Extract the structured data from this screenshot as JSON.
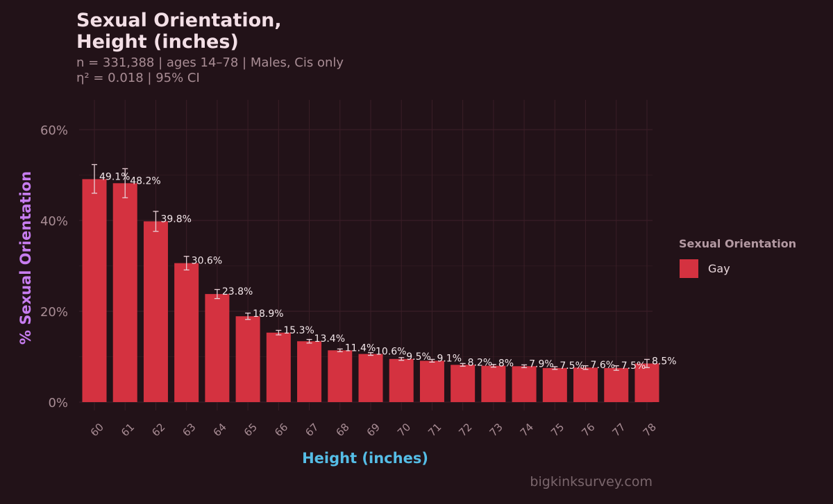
{
  "colors": {
    "background": "#221218",
    "bar": "#d43240",
    "grid": "#3a1e27",
    "tick_text": "#a98d95",
    "ylabel": "#c77df0",
    "xlabel": "#55bde6",
    "label_text": "#f3e7ea",
    "errorbar": "#e8cfd5"
  },
  "title": "Sexual Orientation,\nHeight (inches)",
  "subtitle": "n = 331,388  |  ages 14–78  |  Males, Cis only\nη² = 0.018  |  95% CI",
  "watermark": "bigkinksurvey.com",
  "legend": {
    "title": "Sexual Orientation",
    "items": [
      {
        "label": "Gay",
        "color": "#d43240"
      }
    ]
  },
  "chart_data": {
    "type": "bar",
    "categories": [
      "60",
      "61",
      "62",
      "63",
      "64",
      "65",
      "66",
      "67",
      "68",
      "69",
      "70",
      "71",
      "72",
      "73",
      "74",
      "75",
      "76",
      "77",
      "78"
    ],
    "series": [
      {
        "name": "Gay",
        "values": [
          49.1,
          48.2,
          39.8,
          30.6,
          23.8,
          18.9,
          15.3,
          13.4,
          11.4,
          10.6,
          9.5,
          9.1,
          8.2,
          8.0,
          7.9,
          7.5,
          7.6,
          7.5,
          8.5
        ],
        "labels": [
          "49.1%",
          "48.2%",
          "39.8%",
          "30.6%",
          "23.8%",
          "18.9%",
          "15.3%",
          "13.4%",
          "11.4%",
          "10.6%",
          "9.5%",
          "9.1%",
          "8.2%",
          "8%",
          "7.9%",
          "7.5%",
          "7.6%",
          "7.5%",
          "8.5%"
        ],
        "ci_low": [
          46.0,
          45.0,
          37.6,
          29.1,
          22.8,
          18.2,
          14.8,
          13.0,
          11.1,
          10.3,
          9.2,
          8.8,
          7.9,
          7.7,
          7.6,
          7.2,
          7.2,
          7.0,
          7.6
        ],
        "ci_high": [
          52.3,
          51.4,
          42.0,
          32.1,
          24.8,
          19.6,
          15.8,
          13.8,
          11.7,
          10.9,
          9.8,
          9.4,
          8.5,
          8.3,
          8.2,
          7.8,
          8.0,
          8.0,
          9.4
        ]
      }
    ],
    "xlabel": "Height (inches)",
    "ylabel": "% Sexual Orientation",
    "ylim": [
      0,
      60
    ],
    "yticks": [
      0,
      20,
      40,
      60
    ],
    "ytick_labels": [
      "0%",
      "20%",
      "40%",
      "60%"
    ],
    "grid": true,
    "legend_position": "right"
  }
}
